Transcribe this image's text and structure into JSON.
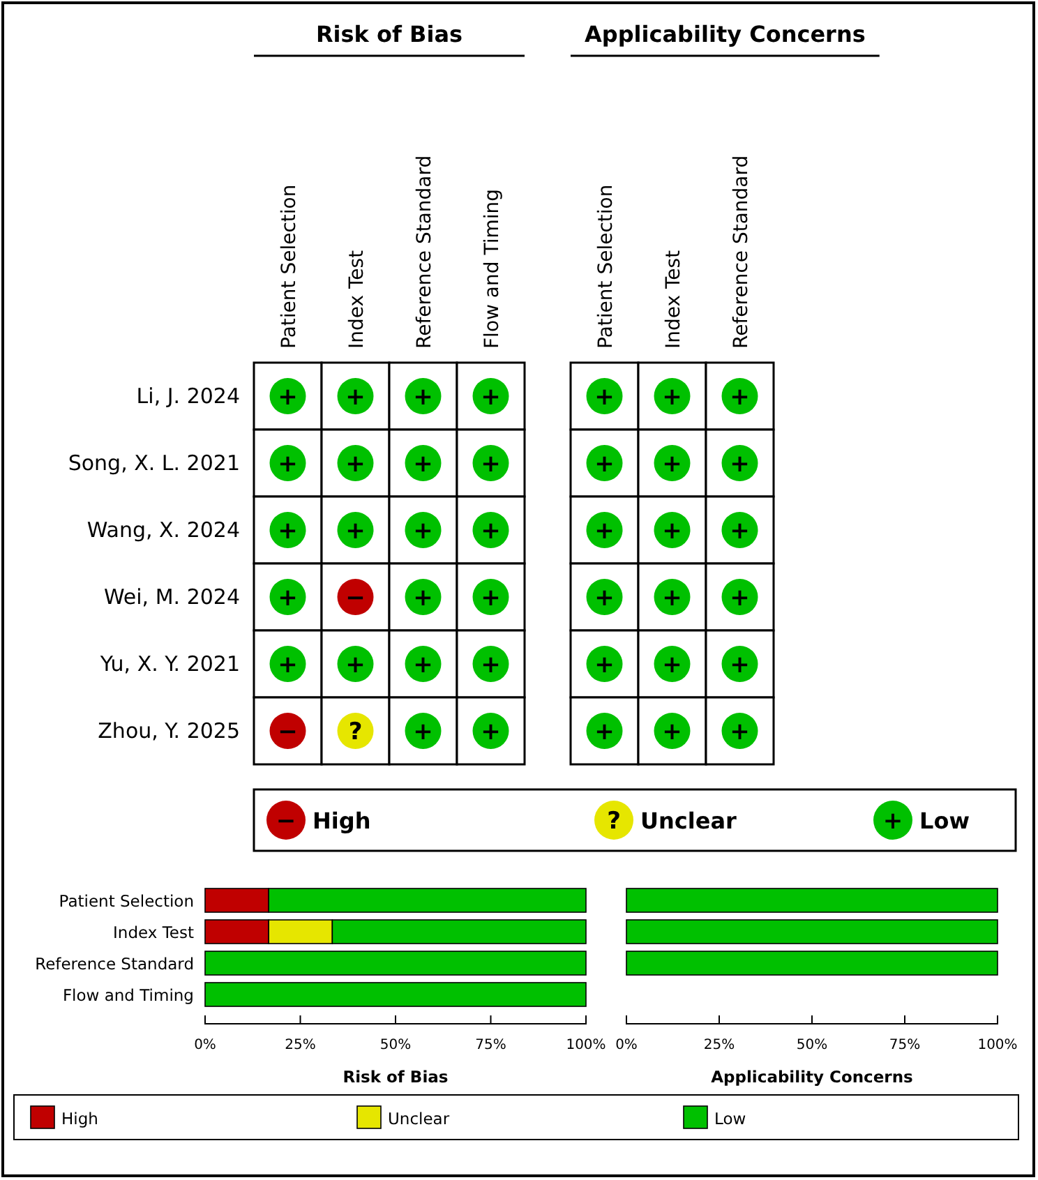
{
  "chart_data": [
    {
      "type": "heatmap",
      "title": "Risk of Bias",
      "categories": [
        "Patient Selection",
        "Index Test",
        "Reference Standard",
        "Flow and Timing"
      ],
      "y_categories": [
        "Li, J. 2024",
        "Song, X. L. 2021",
        "Wang, X. 2024",
        "Wei, M. 2024",
        "Yu, X. Y. 2021",
        "Zhou, Y. 2025"
      ],
      "cells": [
        [
          "+",
          "+",
          "+",
          "+"
        ],
        [
          "+",
          "+",
          "+",
          "+"
        ],
        [
          "+",
          "+",
          "+",
          "+"
        ],
        [
          "+",
          "−",
          "+",
          "+"
        ],
        [
          "+",
          "+",
          "+",
          "+"
        ],
        [
          "−",
          "?",
          "+",
          "+"
        ]
      ],
      "colors": [
        [
          "#00c000",
          "#00c000",
          "#00c000",
          "#00c000"
        ],
        [
          "#00c000",
          "#00c000",
          "#00c000",
          "#00c000"
        ],
        [
          "#00c000",
          "#00c000",
          "#00c000",
          "#00c000"
        ],
        [
          "#00c000",
          "#c00000",
          "#00c000",
          "#00c000"
        ],
        [
          "#00c000",
          "#00c000",
          "#00c000",
          "#00c000"
        ],
        [
          "#c00000",
          "#e6e600",
          "#00c000",
          "#00c000"
        ]
      ]
    },
    {
      "type": "heatmap",
      "title": "Applicability Concerns",
      "categories": [
        "Patient Selection",
        "Index Test",
        "Reference Standard"
      ],
      "y_categories": [
        null,
        null,
        null,
        null,
        null,
        null
      ],
      "cells": [
        [
          "+",
          "+",
          "+"
        ],
        [
          "+",
          "+",
          "+"
        ],
        [
          "+",
          "+",
          "+"
        ],
        [
          "+",
          "+",
          "+"
        ],
        [
          "+",
          "+",
          "+"
        ],
        [
          "+",
          "+",
          "+"
        ]
      ],
      "colors": [
        [
          "#00c000",
          "#00c000",
          "#00c000"
        ],
        [
          "#00c000",
          "#00c000",
          "#00c000"
        ],
        [
          "#00c000",
          "#00c000",
          "#00c000"
        ],
        [
          "#00c000",
          "#00c000",
          "#00c000"
        ],
        [
          "#00c000",
          "#00c000",
          "#00c000"
        ],
        [
          "#00c000",
          "#00c000",
          "#00c000"
        ]
      ]
    },
    {
      "type": "bar",
      "orientation": "horizontal",
      "stacked": true,
      "xlabel": "Risk of Bias",
      "categories": [
        "Patient Selection",
        "Index Test",
        "Reference Standard",
        "Flow and Timing"
      ],
      "series": [
        {
          "name": "High",
          "color": "#c00000",
          "values": [
            16.7,
            16.7,
            0,
            0
          ]
        },
        {
          "name": "Unclear",
          "color": "#e6e600",
          "values": [
            0,
            16.7,
            0,
            0
          ]
        },
        {
          "name": "Low",
          "color": "#00c000",
          "values": [
            83.3,
            66.6,
            100,
            100
          ]
        }
      ],
      "xlim": [
        0,
        100
      ],
      "xticks": [
        {
          "value": 0,
          "label": "0%"
        },
        {
          "value": 25,
          "label": "25%"
        },
        {
          "value": 50,
          "label": "50%"
        },
        {
          "value": 75,
          "label": "75%"
        },
        {
          "value": 100,
          "label": "100%"
        }
      ],
      "legend": "bottom"
    },
    {
      "type": "bar",
      "orientation": "horizontal",
      "stacked": true,
      "xlabel": "Applicability Concerns",
      "categories": [
        null,
        null,
        null
      ],
      "series": [
        {
          "color": "#00c000",
          "values": [
            100,
            100,
            100
          ]
        }
      ],
      "xlim": [
        0,
        100
      ],
      "xticks": [
        {
          "value": 0,
          "label": "0%"
        },
        {
          "value": 25,
          "label": "25%"
        },
        {
          "value": 50,
          "label": "50%"
        },
        {
          "value": 75,
          "label": "75%"
        },
        {
          "value": 100,
          "label": "100%"
        }
      ]
    }
  ]
}
